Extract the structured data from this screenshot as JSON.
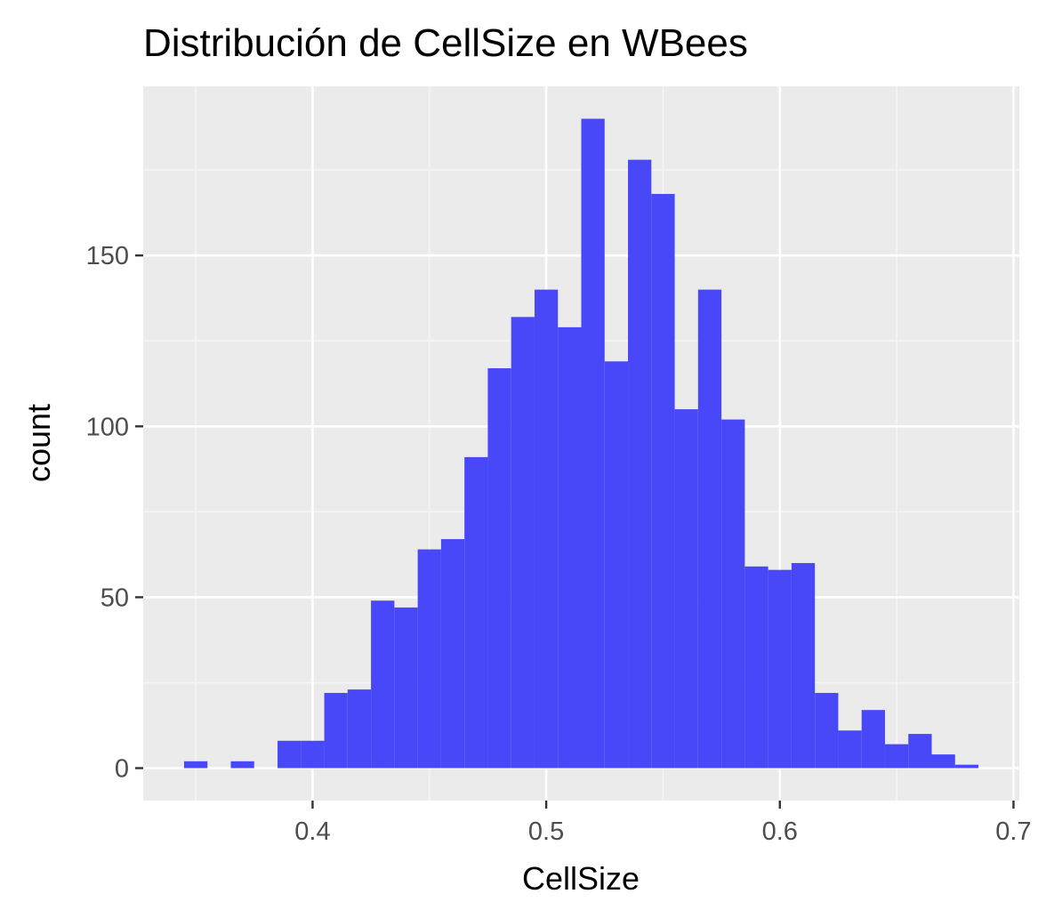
{
  "chart_data": {
    "type": "bar",
    "title": "Distribución de CellSize en WBees",
    "xlabel": "CellSize",
    "ylabel": "count",
    "xlim": [
      0.3275,
      0.7025
    ],
    "ylim": [
      -9.5,
      199.5
    ],
    "x_ticks": [
      0.4,
      0.5,
      0.6,
      0.7
    ],
    "x_tick_labels": [
      "0.4",
      "0.5",
      "0.6",
      "0.7"
    ],
    "y_ticks": [
      0,
      50,
      100,
      150
    ],
    "y_tick_labels": [
      "0",
      "50",
      "100",
      "150"
    ],
    "bin_width": 0.01,
    "bin_centers": [
      0.35,
      0.36,
      0.37,
      0.38,
      0.39,
      0.4,
      0.41,
      0.42,
      0.43,
      0.44,
      0.45,
      0.46,
      0.47,
      0.48,
      0.49,
      0.5,
      0.51,
      0.52,
      0.53,
      0.54,
      0.55,
      0.56,
      0.57,
      0.58,
      0.59,
      0.6,
      0.61,
      0.62,
      0.63,
      0.64,
      0.65,
      0.66,
      0.67,
      0.68
    ],
    "values": [
      2,
      0,
      2,
      0,
      8,
      8,
      22,
      23,
      49,
      47,
      64,
      67,
      91,
      117,
      132,
      140,
      129,
      190,
      119,
      178,
      168,
      105,
      140,
      102,
      59,
      58,
      60,
      22,
      11,
      17,
      7,
      10,
      4,
      1
    ],
    "grid": true,
    "legend": "none",
    "colors": {
      "bar_fill": "#4848f8",
      "panel_background": "#ebebeb",
      "grid_major": "#ffffff",
      "grid_minor": "#f5f5f5",
      "tick_label": "#4d4d4d",
      "tick_mark": "#333333",
      "text": "#000000"
    }
  }
}
